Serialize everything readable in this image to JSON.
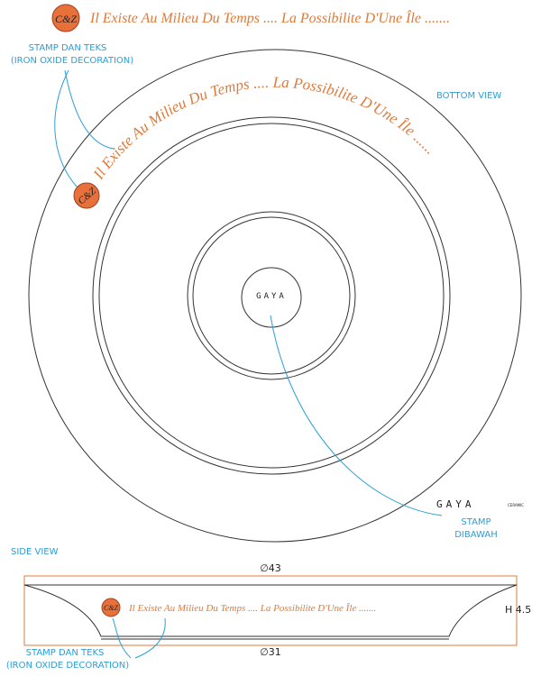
{
  "header": {
    "stamp": "C&Z",
    "text": "Il Existe Au Milieu Du Temps .... La Possibilite D'Une Île ......."
  },
  "bottom_view": {
    "label": "BOTTOM VIEW",
    "annotation": {
      "line1": "STAMP DAN TEKS",
      "line2": "(IRON OXIDE DECORATION)"
    },
    "curved_text": "Il Existe Au Milieu Du Temps .... La Possibilite D'Une Île ......",
    "stamp": "C&Z",
    "center_logo": "GAYA",
    "corner_logo": "GAYA",
    "corner_logo_small": "CERAMIC",
    "stamp_note": {
      "line1": "STAMP",
      "line2": "DIBAWAH"
    }
  },
  "side_view": {
    "label": "SIDE VIEW",
    "top_diameter": "∅43",
    "bottom_diameter": "∅31",
    "height": "H 4.5",
    "stamp": "C&Z",
    "text": "Il Existe Au Milieu Du Temps .... La Possibilite D'Une Île .......",
    "annotation": {
      "line1": "STAMP DAN TEKS",
      "line2": "(IRON OXIDE DECORATION)"
    }
  }
}
